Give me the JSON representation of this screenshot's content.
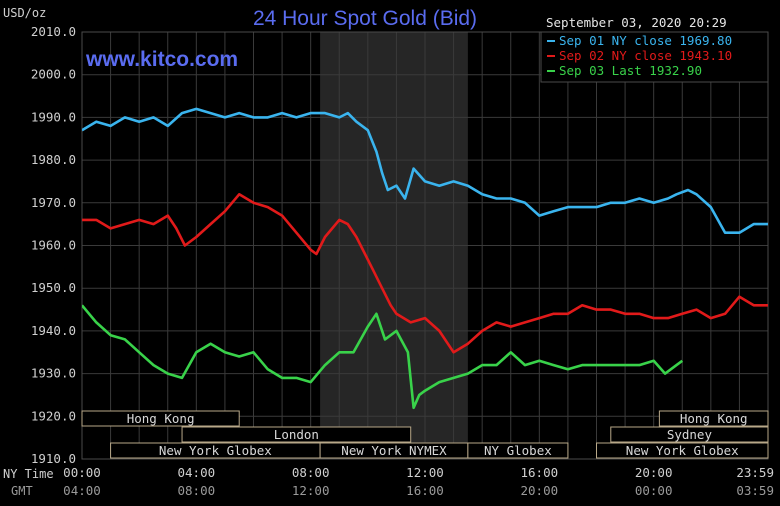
{
  "chart_data": {
    "type": "line",
    "title": "24 Hour Spot Gold (Bid)",
    "watermark": "www.kitco.com",
    "timestamp": "September 03, 2020 20:29",
    "unit_label": "USD/oz",
    "y_ticks": [
      "2010.0",
      "2000.0",
      "1990.0",
      "1980.0",
      "1970.0",
      "1960.0",
      "1950.0",
      "1940.0",
      "1930.0",
      "1920.0",
      "1910.0"
    ],
    "ylim": [
      1910,
      2010
    ],
    "x_row_label": "NY Time",
    "x_ticks": [
      "00:00",
      "04:00",
      "08:00",
      "12:00",
      "16:00",
      "20:00",
      "23:59"
    ],
    "gmt_row_label": "GMT",
    "gmt_ticks": [
      "04:00",
      "08:00",
      "12:00",
      "16:00",
      "20:00",
      "00:00",
      "03:59"
    ],
    "x_range_hours": [
      0,
      24
    ],
    "shaded_session_hours": [
      8.33,
      13.5
    ],
    "grid": true,
    "colors": {
      "sep01": "#3ab4ee",
      "sep02": "#e11a1a",
      "sep03": "#39d24a",
      "title": "#5a6cf0",
      "watermark": "#5a6cf0",
      "axis_text": "#d0d0d0",
      "session_text": "#d8d8d8",
      "session_box": "#b8a889",
      "shade": "#262626",
      "grid": "#3a3a3a"
    },
    "legend": {
      "placement": "top-right",
      "entries": [
        {
          "label": "Sep 01 NY close 1969.80",
          "series": "sep01"
        },
        {
          "label": "Sep 02 NY close 1943.10",
          "series": "sep02"
        },
        {
          "label": "Sep 03 Last 1932.90",
          "series": "sep03"
        }
      ]
    },
    "sessions": [
      {
        "label": "Hong Kong",
        "start": 0.0,
        "end": 5.5,
        "row": 1
      },
      {
        "label": "Hong Kong",
        "start": 20.2,
        "end": 24.0,
        "row": 1
      },
      {
        "label": "London",
        "start": 3.5,
        "end": 11.5,
        "row": 2
      },
      {
        "label": "Sydney",
        "start": 18.5,
        "end": 24.0,
        "row": 2
      },
      {
        "label": "New York Globex",
        "start": 1.0,
        "end": 8.33,
        "row": 3
      },
      {
        "label": "New York NYMEX",
        "start": 8.33,
        "end": 13.5,
        "row": 3
      },
      {
        "label": "NY Globex",
        "start": 13.5,
        "end": 17.0,
        "row": 3
      },
      {
        "label": "New York Globex",
        "start": 18.0,
        "end": 24.0,
        "row": 3
      }
    ],
    "series": [
      {
        "key": "sep01",
        "name": "Sep 01",
        "x": [
          0,
          0.5,
          1,
          1.5,
          2,
          2.5,
          3,
          3.5,
          4,
          4.5,
          5,
          5.5,
          6,
          6.5,
          7,
          7.5,
          8,
          8.5,
          9,
          9.3,
          9.6,
          10,
          10.3,
          10.5,
          10.7,
          11,
          11.3,
          11.6,
          12,
          12.5,
          13,
          13.5,
          14,
          14.5,
          15,
          15.5,
          16,
          16.5,
          17,
          17.5,
          18,
          18.5,
          19,
          19.5,
          20,
          20.5,
          20.8,
          21.2,
          21.5,
          22,
          22.5,
          23,
          23.5,
          24
        ],
        "y": [
          1987,
          1989,
          1988,
          1990,
          1989,
          1990,
          1988,
          1991,
          1992,
          1991,
          1990,
          1991,
          1990,
          1990,
          1991,
          1990,
          1991,
          1991,
          1990,
          1991,
          1989,
          1987,
          1982,
          1977,
          1973,
          1974,
          1971,
          1978,
          1975,
          1974,
          1975,
          1974,
          1972,
          1971,
          1971,
          1970,
          1967,
          1968,
          1969,
          1969,
          1969,
          1970,
          1970,
          1971,
          1970,
          1971,
          1972,
          1973,
          1972,
          1969,
          1963,
          1963,
          1965,
          1965
        ]
      },
      {
        "key": "sep02",
        "name": "Sep 02",
        "x": [
          0,
          0.5,
          1,
          1.5,
          2,
          2.5,
          3,
          3.3,
          3.6,
          4,
          4.5,
          5,
          5.5,
          6,
          6.5,
          7,
          7.5,
          8,
          8.2,
          8.5,
          9,
          9.3,
          9.6,
          9.9,
          10.2,
          10.5,
          10.8,
          11,
          11.5,
          12,
          12.5,
          13,
          13.5,
          14,
          14.5,
          15,
          15.5,
          16,
          16.5,
          17,
          17.5,
          18,
          18.5,
          19,
          19.5,
          20,
          20.5,
          21,
          21.5,
          22,
          22.5,
          23,
          23.5,
          24
        ],
        "y": [
          1966,
          1966,
          1964,
          1965,
          1966,
          1965,
          1967,
          1964,
          1960,
          1962,
          1965,
          1968,
          1972,
          1970,
          1969,
          1967,
          1963,
          1959,
          1958,
          1962,
          1966,
          1965,
          1962,
          1958,
          1954,
          1950,
          1946,
          1944,
          1942,
          1943,
          1940,
          1935,
          1937,
          1940,
          1942,
          1941,
          1942,
          1943,
          1944,
          1944,
          1946,
          1945,
          1945,
          1944,
          1944,
          1943,
          1943,
          1944,
          1945,
          1943,
          1944,
          1948,
          1946,
          1946
        ]
      },
      {
        "key": "sep03",
        "name": "Sep 03",
        "x": [
          0,
          0.5,
          1,
          1.5,
          2,
          2.5,
          3,
          3.5,
          4,
          4.5,
          5,
          5.5,
          6,
          6.5,
          7,
          7.5,
          8,
          8.5,
          9,
          9.5,
          10,
          10.3,
          10.6,
          11,
          11.4,
          11.6,
          11.8,
          12,
          12.5,
          13,
          13.5,
          14,
          14.5,
          15,
          15.5,
          16,
          16.5,
          17,
          17.5,
          18,
          18.5,
          19,
          19.5,
          20,
          20.4,
          20.8,
          21
        ],
        "y": [
          1946,
          1942,
          1939,
          1938,
          1935,
          1932,
          1930,
          1929,
          1935,
          1937,
          1935,
          1934,
          1935,
          1931,
          1929,
          1929,
          1928,
          1932,
          1935,
          1935,
          1941,
          1944,
          1938,
          1940,
          1935,
          1922,
          1925,
          1926,
          1928,
          1929,
          1930,
          1932,
          1932,
          1935,
          1932,
          1933,
          1932,
          1931,
          1932,
          1932,
          1932,
          1932,
          1932,
          1933,
          1930,
          1932,
          1933
        ]
      }
    ]
  }
}
